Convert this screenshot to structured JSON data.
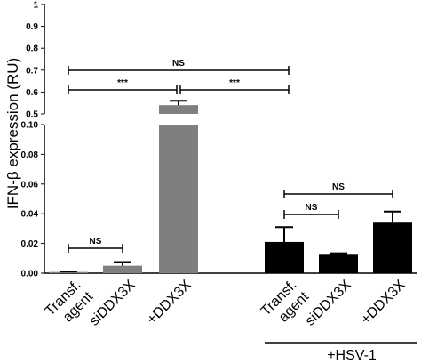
{
  "chart_data": {
    "type": "bar",
    "ylabel": "IFN-β expression (RU)",
    "y_axis_lower": {
      "range": [
        0,
        0.1
      ],
      "ticks": [
        "0.00",
        "0.02",
        "0.04",
        "0.06",
        "0.08",
        "0.10"
      ]
    },
    "y_axis_upper": {
      "range": [
        0.5,
        1.0
      ],
      "ticks": [
        "0.5",
        "0.6",
        "0.7",
        "0.8",
        "0.9",
        "1"
      ]
    },
    "axis_break": true,
    "grid": false,
    "categories": [
      "Transf. agent",
      "siDDX3X",
      "+DDX3X",
      "Transf. agent",
      "siDDX3X",
      "+DDX3X"
    ],
    "category_lines": [
      [
        "Transf.",
        "agent"
      ],
      [
        "siDDX3X"
      ],
      [
        "+DDX3X"
      ],
      [
        "Transf.",
        "agent"
      ],
      [
        "siDDX3X"
      ],
      [
        "+DDX3X"
      ]
    ],
    "values": [
      0.0008,
      0.005,
      0.54,
      0.021,
      0.013,
      0.034
    ],
    "errors": [
      0.0003,
      0.0025,
      0.02,
      0.01,
      0.0004,
      0.0075
    ],
    "bar_colors": [
      "#7f7f7f",
      "#7f7f7f",
      "#7f7f7f",
      "#000000",
      "#000000",
      "#000000"
    ],
    "group_label": "+HSV-1",
    "significance": [
      {
        "from": 0,
        "to": 1,
        "label": "NS"
      },
      {
        "from": 0,
        "to": 2,
        "label": "NS"
      },
      {
        "from": 0,
        "to": 2,
        "label": "***",
        "split": true
      },
      {
        "from": 2,
        "to": 3,
        "label": "***",
        "split": true
      },
      {
        "from": 3,
        "to": 4,
        "label": "NS"
      },
      {
        "from": 3,
        "to": 5,
        "label": "NS"
      }
    ]
  }
}
